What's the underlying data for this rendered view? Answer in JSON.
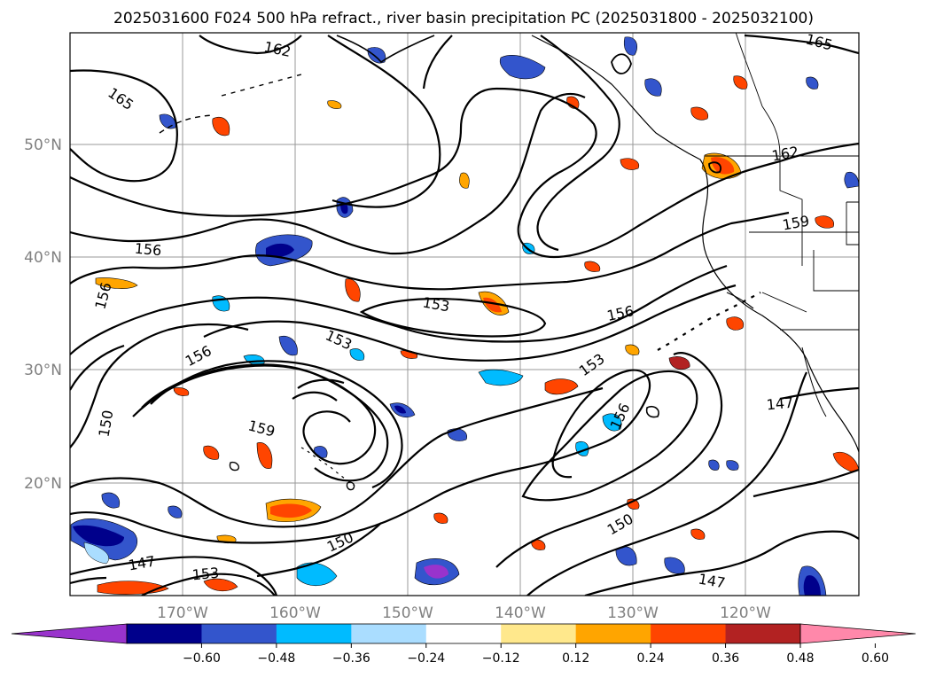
{
  "title": "2025031600 F024 500 hPa refract., river basin precipitation PC (2025031800 - 2025032100)",
  "map": {
    "lat_ticks": [
      "50°N",
      "40°N",
      "30°N",
      "20°N"
    ],
    "lon_ticks": [
      "170°W",
      "160°W",
      "150°W",
      "140°W",
      "130°W",
      "120°W"
    ],
    "grid": true,
    "contour_labels": [
      "162",
      "165",
      "165",
      "162",
      "159",
      "156",
      "156",
      "153",
      "153",
      "156",
      "156",
      "153",
      "156",
      "150",
      "159",
      "150",
      "150",
      "147",
      "147",
      "147",
      "153"
    ]
  },
  "colorbar": {
    "colors": [
      "#9933cc",
      "#00008b",
      "#3355cc",
      "#00bbff",
      "#aaddff",
      "#ffffff",
      "#ffe88c",
      "#ffa500",
      "#ff4500",
      "#b22222",
      "#ff88aa"
    ],
    "tick_labels": [
      "−0.60",
      "−0.48",
      "−0.36",
      "−0.24",
      "−0.12",
      "0.12",
      "0.24",
      "0.36",
      "0.48",
      "0.60"
    ]
  }
}
